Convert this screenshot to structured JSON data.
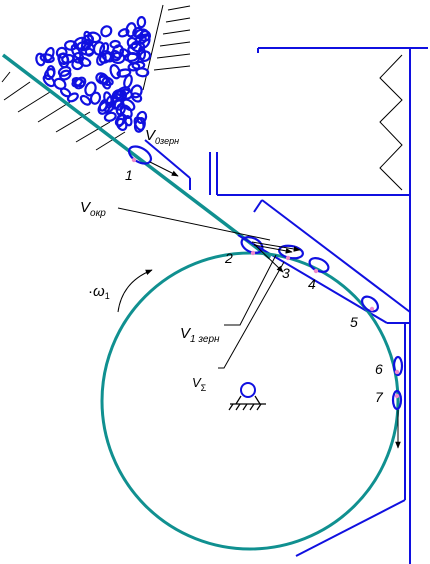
{
  "colors": {
    "structure": "#1010e0",
    "drum": "#109090",
    "grain": "#1010e0",
    "grain_contact": "#ee88cc",
    "line": "#000000"
  },
  "labels": {
    "v0_main": "V",
    "v0_sub": "0зерн",
    "vokr_main": "V",
    "vokr_sub": "окр",
    "v1_main": "V",
    "v1_sub": "1 зерн",
    "vsum_main": "V",
    "vsum_sub": "Σ",
    "omega_dot": "·",
    "omega_main": "ω",
    "omega_sub": "1"
  },
  "positions": {
    "p1": "1",
    "p2": "2",
    "p3": "3",
    "p4": "4",
    "p5": "5",
    "p6": "6",
    "p7": "7"
  },
  "icons": {
    "pivot": "fixed-pivot-support-icon",
    "spring": "spring-zigzag-icon",
    "rotation": "rotation-arrow-icon"
  }
}
